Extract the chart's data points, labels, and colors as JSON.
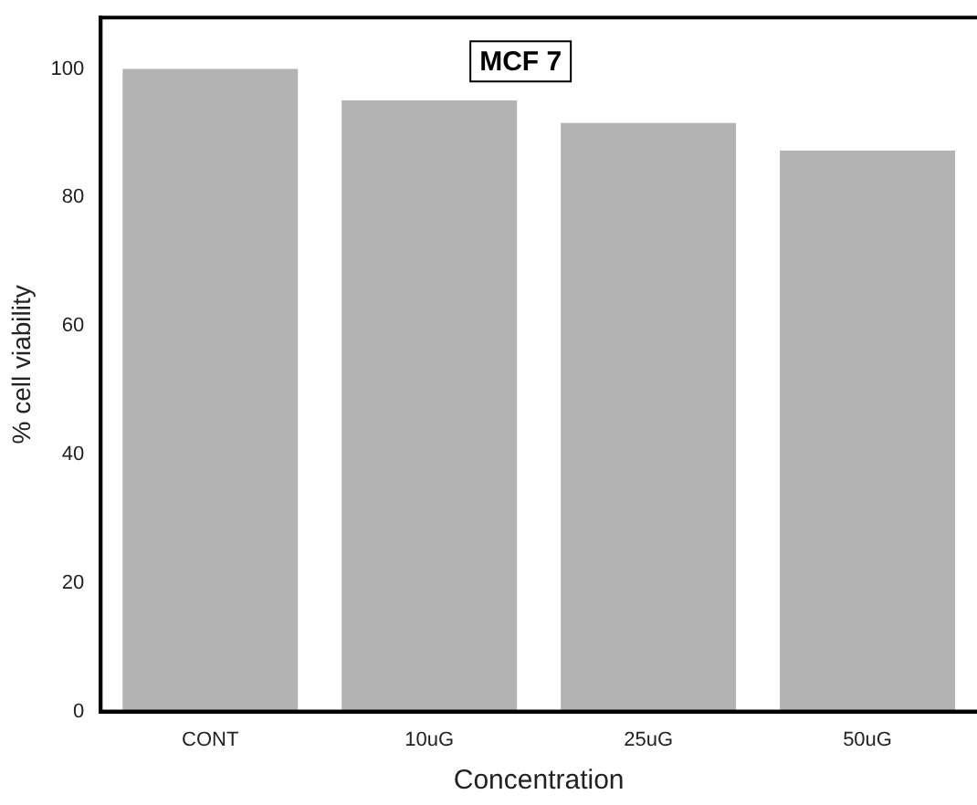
{
  "chart_data": {
    "type": "bar",
    "title": "MCF 7",
    "xlabel": "Concentration",
    "ylabel": "% cell viability",
    "categories": [
      "CONT",
      "10uG",
      "25uG",
      "50uG"
    ],
    "values": [
      100,
      95.1,
      91.6,
      87.3
    ],
    "color": "#b3b3b3",
    "ylim": [
      0,
      108
    ],
    "yticks": [
      0,
      20,
      40,
      60,
      80,
      100
    ],
    "grid": false,
    "legend": false
  }
}
